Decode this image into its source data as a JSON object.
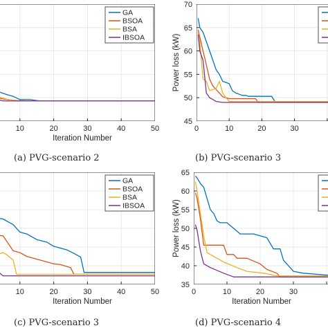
{
  "chart_data": [
    {
      "panel": "a",
      "caption": "(a) PVG-scenario 2",
      "type": "line",
      "xlabel": "Iteration Number",
      "ylabel": "",
      "xlim": [
        0,
        50
      ],
      "ylim": [
        45,
        70
      ],
      "grid": true,
      "xticks": [
        10,
        20,
        30,
        40,
        50
      ],
      "yticks": [],
      "legend": [
        "GA",
        "BSOA",
        "BSA",
        "IBSOA"
      ],
      "legend_position": "top-right",
      "series": [
        {
          "name": "GA",
          "color": "#0072BD",
          "x": [
            0,
            4,
            6,
            8,
            10,
            13,
            16,
            20,
            50
          ],
          "y": [
            52.1,
            51.2,
            50.7,
            50.3,
            49.6,
            49.6,
            49.3,
            49.3,
            49.3
          ]
        },
        {
          "name": "BSOA",
          "color": "#D95319",
          "x": [
            0,
            4,
            6,
            9,
            14,
            50
          ],
          "y": [
            50.3,
            49.9,
            49.6,
            49.4,
            49.3,
            49.3
          ]
        },
        {
          "name": "BSA",
          "color": "#EDB120",
          "x": [
            0,
            4,
            6,
            9,
            50
          ],
          "y": [
            50.7,
            50.1,
            49.7,
            49.3,
            49.3
          ]
        },
        {
          "name": "IBSOA",
          "color": "#7E2F8E",
          "x": [
            0,
            4,
            5,
            50
          ],
          "y": [
            49.9,
            49.5,
            49.3,
            49.3
          ]
        }
      ]
    },
    {
      "panel": "b",
      "caption": "(b) PVG-scenario 3",
      "type": "line",
      "xlabel": "",
      "ylabel": "Power loss (kW)",
      "xlim": [
        0,
        50
      ],
      "ylim": [
        45,
        70
      ],
      "grid": true,
      "xticks": [
        0,
        10,
        20,
        30
      ],
      "yticks": [
        45,
        50,
        55,
        60,
        65,
        70
      ],
      "legend": [
        "GA",
        "BSOA",
        "BSA",
        "IBSOA"
      ],
      "legend_position": "top-right",
      "series": [
        {
          "name": "GA",
          "color": "#0072BD",
          "x": [
            0.5,
            1,
            2,
            3,
            4,
            5,
            6,
            7,
            8,
            10,
            11,
            12,
            14,
            15,
            16,
            23,
            24,
            50
          ],
          "y": [
            67,
            65,
            64,
            62,
            60,
            58,
            56,
            55,
            53.5,
            53,
            51.5,
            51,
            50.5,
            50.5,
            50.3,
            50.3,
            49.2,
            49.2
          ]
        },
        {
          "name": "BSOA",
          "color": "#D95319",
          "x": [
            0.5,
            1,
            2,
            3,
            4,
            5,
            7,
            8,
            10,
            18,
            19,
            50
          ],
          "y": [
            64.5,
            63,
            60,
            57,
            54,
            52.5,
            51,
            50.2,
            49.8,
            49.8,
            49,
            49
          ]
        },
        {
          "name": "BSA",
          "color": "#EDB120",
          "x": [
            0.5,
            1,
            2,
            3,
            4,
            6,
            7,
            8,
            9,
            10,
            50
          ],
          "y": [
            64,
            62,
            54,
            53.5,
            51.5,
            52,
            53.5,
            51,
            50,
            49.2,
            49.2
          ]
        },
        {
          "name": "IBSOA",
          "color": "#7E2F8E",
          "x": [
            0.5,
            1,
            2,
            3,
            4,
            6,
            8,
            50
          ],
          "y": [
            63.5,
            60,
            58,
            51,
            50,
            49.2,
            49,
            49
          ]
        }
      ]
    },
    {
      "panel": "c",
      "caption": "(c) PVG-scenario 3",
      "type": "line",
      "xlabel": "Iteration Number",
      "ylabel": "",
      "xlim": [
        0,
        50
      ],
      "ylim": [
        35,
        65
      ],
      "grid": true,
      "xticks": [
        10,
        20,
        30,
        40,
        50
      ],
      "yticks": [],
      "legend": [
        "GA",
        "BSOA",
        "BSA",
        "IBSOA"
      ],
      "legend_position": "top-right",
      "series": [
        {
          "name": "GA",
          "color": "#0072BD",
          "x": [
            0,
            5,
            8,
            10,
            12,
            15,
            18,
            20,
            24,
            26,
            28,
            29,
            50
          ],
          "y": [
            53.2,
            52.5,
            51,
            49,
            48.5,
            47,
            46.3,
            45.2,
            44.2,
            43.3,
            42.3,
            38.2,
            38.2
          ]
        },
        {
          "name": "BSOA",
          "color": "#D95319",
          "x": [
            0,
            5,
            8,
            10,
            12,
            16,
            20,
            22,
            25,
            26,
            50
          ],
          "y": [
            48.5,
            48,
            44,
            43.5,
            42.5,
            41.5,
            40.5,
            40.3,
            39.5,
            37.7,
            37.7
          ]
        },
        {
          "name": "BSA",
          "color": "#EDB120",
          "x": [
            0,
            3,
            5,
            6,
            8,
            9,
            30,
            50
          ],
          "y": [
            44,
            43,
            43.5,
            43,
            41.5,
            37.7,
            37.7,
            37.7
          ]
        },
        {
          "name": "IBSOA",
          "color": "#7E2F8E",
          "x": [
            0,
            3,
            5,
            50
          ],
          "y": [
            40.5,
            38.8,
            37.3,
            37.3
          ]
        }
      ]
    },
    {
      "panel": "d",
      "caption": "(d) PVG-scenario 4",
      "type": "line",
      "xlabel": "Iteration Number",
      "ylabel": "Power loss (kW)",
      "xlim": [
        0,
        50
      ],
      "ylim": [
        35,
        65
      ],
      "grid": true,
      "xticks": [
        0,
        10,
        20,
        30
      ],
      "yticks": [
        35,
        40,
        45,
        50,
        55,
        60,
        65
      ],
      "legend": [
        "GA",
        "BSOA",
        "BSA",
        "IBSOA"
      ],
      "legend_position": "top-right",
      "series": [
        {
          "name": "GA",
          "color": "#0072BD",
          "x": [
            0.5,
            1,
            2,
            3,
            4,
            5,
            6,
            7,
            8,
            10,
            14,
            18,
            22,
            24,
            26,
            27,
            30,
            33,
            40,
            50
          ],
          "y": [
            64,
            63.5,
            62,
            61,
            58,
            55,
            54,
            52,
            51.5,
            51.5,
            48.5,
            48.5,
            47.5,
            44.5,
            44.5,
            41.5,
            38.5,
            38,
            37.5,
            37.5
          ]
        },
        {
          "name": "BSOA",
          "color": "#D95319",
          "x": [
            0.5,
            1,
            2,
            3,
            5,
            9,
            10,
            12,
            13,
            16,
            20,
            22,
            25,
            26,
            50
          ],
          "y": [
            59.5,
            58,
            52.5,
            45.5,
            45.5,
            45.5,
            43,
            43,
            42,
            42,
            40.5,
            39,
            38,
            37,
            37
          ]
        },
        {
          "name": "BSA",
          "color": "#EDB120",
          "x": [
            0.5,
            1,
            2,
            3,
            4,
            5,
            7,
            9,
            13,
            16,
            21,
            25,
            50
          ],
          "y": [
            62.5,
            60,
            54,
            48,
            43.5,
            43,
            42,
            41,
            39.5,
            38.5,
            38,
            37.3,
            37.3
          ]
        },
        {
          "name": "IBSOA",
          "color": "#7E2F8E",
          "x": [
            0.5,
            1,
            2,
            3,
            5,
            9,
            12,
            50
          ],
          "y": [
            51,
            49.5,
            44,
            40.5,
            39.5,
            38,
            37,
            37
          ]
        }
      ]
    }
  ]
}
